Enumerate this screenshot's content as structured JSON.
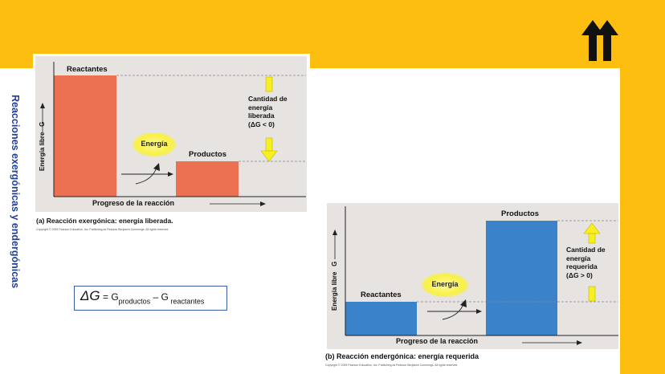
{
  "slide": {
    "side_title": "Reacciones exergónicas y endergónicas",
    "logo_icon": "double-up-arrow-logo",
    "colors": {
      "accent": "#fdbe0f",
      "bar_exergonic": "#ec7153",
      "bar_endergonic": "#3a82c9",
      "arrow_yellow": "#f6ef23",
      "title_blue": "#1f3f9b"
    }
  },
  "panel_a": {
    "ylabel": "Energía libre   G",
    "xlabel": "Progreso de la reacción",
    "bar_labels": {
      "reactants": "Reactantes",
      "products": "Productos"
    },
    "energy_label": "Energía",
    "annotation": [
      "Cantidad de",
      "energía",
      "liberada",
      "(ΔG < 0)"
    ],
    "caption": "(a) Reacción exergónica: energía liberada.",
    "copyright": "Copyright © 2005 Pearson Education, Inc. Publishing as Pearson Benjamin Cummings. All rights reserved."
  },
  "panel_b": {
    "ylabel": "Energía libre   G",
    "xlabel": "Progreso de la reacción",
    "bar_labels": {
      "reactants": "Reactantes",
      "products": "Productos"
    },
    "energy_label": "Energía",
    "annotation": [
      "Cantidad de",
      "energía",
      "requerida",
      "(ΔG > 0)"
    ],
    "caption": "(b) Reacción endergónica: energía requerida",
    "copyright": "Copyright © 2005 Pearson Education, Inc. Publishing as Pearson Benjamin Cummings. All rights reserved."
  },
  "formula": {
    "delta": "ΔG",
    "eq": " = G",
    "sub1": "productos",
    "minus": " – G",
    "sub2": " reactantes"
  }
}
